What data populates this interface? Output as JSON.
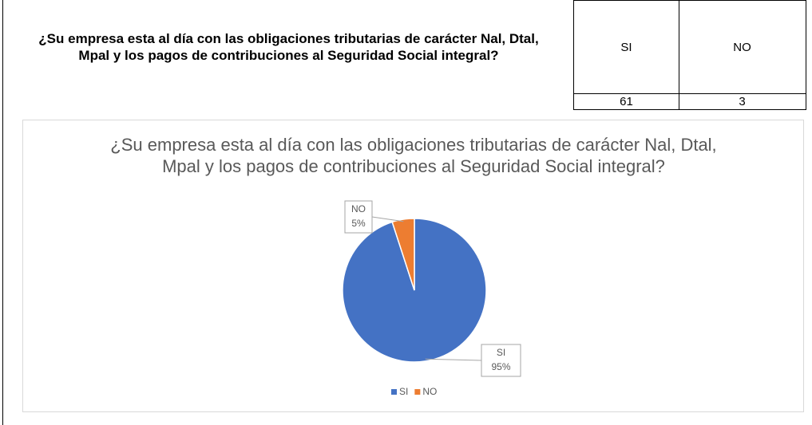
{
  "table": {
    "question": "¿Su empresa esta al día con las obligaciones tributarias de carácter Nal, Dtal, Mpal y los pagos de contribuciones al Seguridad Social integral?",
    "headers": [
      "SI",
      "NO"
    ],
    "values": [
      "61",
      "3"
    ]
  },
  "chart_data": {
    "type": "pie",
    "title": "¿Su empresa esta al día con las obligaciones tributarias de carácter Nal, Dtal, Mpal y los pagos de contribuciones al Seguridad Social integral?",
    "categories": [
      "SI",
      "NO"
    ],
    "values": [
      95,
      5
    ],
    "value_labels": [
      "95%",
      "5%"
    ],
    "colors": [
      "#4472c4",
      "#ed7d31"
    ],
    "legend": "bottom"
  }
}
